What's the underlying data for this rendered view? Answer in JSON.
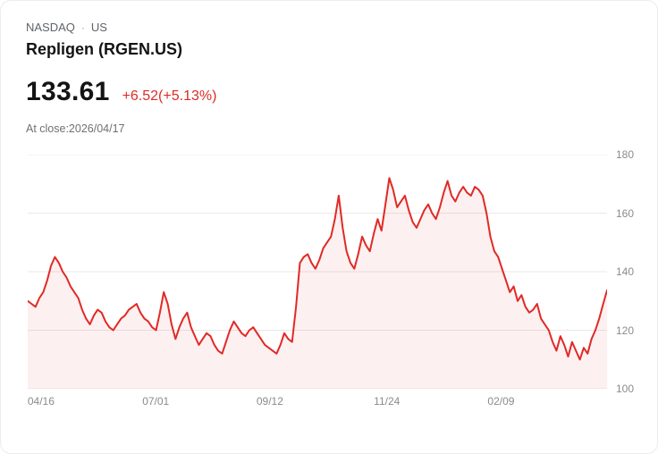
{
  "header": {
    "exchange": "NASDAQ",
    "separator": "·",
    "region": "US",
    "title": "Repligen (RGEN.US)",
    "price": "133.61",
    "change": "+6.52(+5.13%)",
    "as_of": "At close:2026/04/17"
  },
  "colors": {
    "accent_red": "#dd2b26",
    "grid": "#e8e8e8",
    "axis_text": "#8b8b8b"
  },
  "chart_data": {
    "type": "line",
    "title": "",
    "xlabel": "",
    "ylabel": "",
    "ylim": [
      100,
      180
    ],
    "y_ticks": [
      100,
      120,
      140,
      160,
      180
    ],
    "x_ticks": [
      {
        "label": "04/16",
        "pos": 0.023
      },
      {
        "label": "07/01",
        "pos": 0.221
      },
      {
        "label": "09/12",
        "pos": 0.418
      },
      {
        "label": "11/24",
        "pos": 0.62
      },
      {
        "label": "02/09",
        "pos": 0.817
      }
    ],
    "gridlines": "horizontal",
    "legend": "none",
    "grid_color": "#e8e8e8",
    "area_color": "rgba(224,42,38,0.07)",
    "series": [
      {
        "name": "RGEN.US",
        "color": "#e02a26",
        "values": [
          130,
          129,
          128,
          131,
          133,
          137,
          142,
          145,
          143,
          140,
          138,
          135,
          133,
          131,
          127,
          124,
          122,
          125,
          127,
          126,
          123,
          121,
          120,
          122,
          124,
          125,
          127,
          128,
          129,
          126,
          124,
          123,
          121,
          120,
          126,
          133,
          129,
          122,
          117,
          121,
          124,
          126,
          121,
          118,
          115,
          117,
          119,
          118,
          115,
          113,
          112,
          116,
          120,
          123,
          121,
          119,
          118,
          120,
          121,
          119,
          117,
          115,
          114,
          113,
          112,
          115,
          119,
          117,
          116,
          128,
          143,
          145,
          146,
          143,
          141,
          144,
          148,
          150,
          152,
          158,
          166,
          155,
          147,
          143,
          141,
          146,
          152,
          149,
          147,
          153,
          158,
          154,
          163,
          172,
          168,
          162,
          164,
          166,
          161,
          157,
          155,
          158,
          161,
          163,
          160,
          158,
          162,
          167,
          171,
          166,
          164,
          167,
          169,
          167,
          166,
          169,
          168,
          166,
          160,
          152,
          147,
          145,
          141,
          137,
          133,
          135,
          130,
          132,
          128,
          126,
          127,
          129,
          124,
          122,
          120,
          116,
          113,
          118,
          115,
          111,
          116,
          113,
          110,
          114,
          112,
          117,
          120,
          124,
          129,
          133.61
        ]
      }
    ]
  }
}
